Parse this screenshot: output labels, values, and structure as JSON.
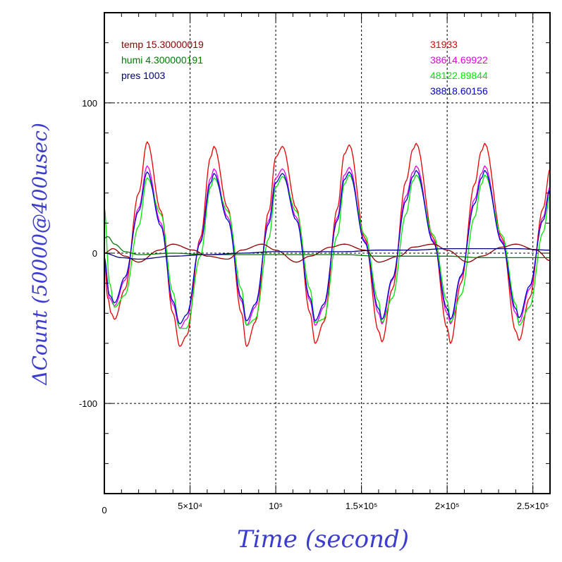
{
  "chart_data": {
    "type": "line",
    "title": "",
    "xlabel": "Time (second)",
    "ylabel": "ΔCount (50000@400usec)",
    "xlim": [
      0,
      260000
    ],
    "ylim": [
      -160,
      160
    ],
    "grid": true,
    "x_tick_labels": [
      {
        "value": 0,
        "label": "0"
      },
      {
        "value": 50000,
        "label": "5×10⁴"
      },
      {
        "value": 100000,
        "label": "10⁵"
      },
      {
        "value": 150000,
        "label": "1.5×10⁵"
      },
      {
        "value": 200000,
        "label": "2×10⁵"
      },
      {
        "value": 250000,
        "label": "2.5×10⁵"
      }
    ],
    "y_tick_labels": [
      {
        "value": 100,
        "label": "100"
      },
      {
        "value": 0,
        "label": "0"
      },
      {
        "value": -100,
        "label": "-100"
      }
    ],
    "legend_left": [
      {
        "text": "temp 15.30000019",
        "color": "#8b0000"
      },
      {
        "text": "humi 4.300000191",
        "color": "#007a00"
      },
      {
        "text": "pres 1003",
        "color": "#00007a"
      }
    ],
    "legend_right": [
      {
        "text": "31933",
        "color": "#e60000"
      },
      {
        "text": "38614.69922",
        "color": "#e600e6"
      },
      {
        "text": "48122.89844",
        "color": "#00e600"
      },
      {
        "text": "38818.60156",
        "color": "#0000d0"
      }
    ],
    "period": 39500,
    "series": [
      {
        "color": "#e60000",
        "amplitude": 67,
        "offset": 6,
        "phase": 0,
        "x": [
          0,
          2000,
          4000,
          6000,
          12000,
          20000,
          25000,
          33000,
          40000,
          44000,
          48000,
          56000,
          62000,
          64000,
          72000,
          80000,
          83000,
          88000,
          96000,
          100000,
          104000,
          112000,
          120000,
          123000,
          128000,
          136000,
          140000,
          143000,
          152000,
          160000,
          162000,
          168000,
          176000,
          180000,
          182000,
          192000,
          200000,
          202000,
          208000,
          216000,
          220000,
          222000,
          232000,
          240000,
          242000,
          248000,
          256000,
          260000
        ],
        "y": [
          -5,
          -30,
          -40,
          -44,
          -24,
          40,
          74,
          28,
          -40,
          -62,
          -55,
          10,
          64,
          71,
          30,
          -40,
          -62,
          -46,
          28,
          64,
          71,
          30,
          -40,
          -60,
          -46,
          30,
          66,
          72,
          10,
          -52,
          -59,
          -24,
          48,
          69,
          73,
          10,
          -50,
          -60,
          -20,
          46,
          68,
          73,
          10,
          -52,
          -58,
          -30,
          30,
          56
        ]
      },
      {
        "color": "#e600e6",
        "amplitude": 52,
        "offset": 5,
        "x": [
          0,
          3000,
          6000,
          12000,
          20000,
          25000,
          33000,
          40000,
          44000,
          48000,
          56000,
          62000,
          64000,
          72000,
          80000,
          83000,
          88000,
          96000,
          100000,
          104000,
          112000,
          120000,
          123000,
          128000,
          136000,
          140000,
          143000,
          152000,
          160000,
          162000,
          168000,
          176000,
          180000,
          182000,
          192000,
          200000,
          202000,
          208000,
          216000,
          220000,
          222000,
          232000,
          240000,
          242000,
          248000,
          256000,
          260000
        ],
        "y": [
          -5,
          -30,
          -35,
          -18,
          30,
          58,
          20,
          -34,
          -50,
          -44,
          8,
          50,
          56,
          24,
          -32,
          -48,
          -36,
          22,
          50,
          56,
          24,
          -32,
          -48,
          -36,
          24,
          52,
          57,
          8,
          -40,
          -47,
          -18,
          38,
          54,
          58,
          8,
          -40,
          -47,
          -16,
          36,
          53,
          58,
          8,
          -40,
          -46,
          -24,
          24,
          44
        ]
      },
      {
        "color": "#00e600",
        "amplitude": 50,
        "offset": 3,
        "x": [
          0,
          3000,
          6000,
          12000,
          20000,
          25000,
          33000,
          40000,
          44000,
          48000,
          56000,
          62000,
          64000,
          72000,
          80000,
          83000,
          88000,
          96000,
          100000,
          104000,
          112000,
          120000,
          123000,
          128000,
          136000,
          140000,
          143000,
          152000,
          160000,
          162000,
          168000,
          176000,
          180000,
          182000,
          192000,
          200000,
          202000,
          208000,
          216000,
          220000,
          222000,
          232000,
          240000,
          242000,
          248000,
          256000,
          260000
        ],
        "y": [
          30,
          -20,
          -36,
          -28,
          18,
          50,
          26,
          -26,
          -50,
          -50,
          -2,
          44,
          50,
          28,
          -24,
          -48,
          -44,
          10,
          44,
          51,
          28,
          -24,
          -46,
          -44,
          12,
          46,
          52,
          12,
          -32,
          -46,
          -30,
          26,
          48,
          52,
          12,
          -32,
          -46,
          -28,
          24,
          46,
          52,
          12,
          -34,
          -48,
          -36,
          14,
          38
        ]
      },
      {
        "color": "#0000d0",
        "amplitude": 48,
        "offset": 4,
        "x": [
          0,
          3000,
          6000,
          12000,
          20000,
          25000,
          33000,
          40000,
          44000,
          48000,
          56000,
          62000,
          64000,
          72000,
          80000,
          83000,
          88000,
          96000,
          100000,
          104000,
          112000,
          120000,
          123000,
          128000,
          136000,
          140000,
          143000,
          152000,
          160000,
          162000,
          168000,
          176000,
          180000,
          182000,
          192000,
          200000,
          202000,
          208000,
          216000,
          220000,
          222000,
          232000,
          240000,
          242000,
          248000,
          256000,
          260000
        ],
        "y": [
          -3,
          -28,
          -33,
          -16,
          28,
          54,
          18,
          -32,
          -47,
          -41,
          7,
          47,
          53,
          22,
          -30,
          -45,
          -34,
          20,
          47,
          53,
          22,
          -30,
          -45,
          -34,
          22,
          49,
          54,
          7,
          -37,
          -44,
          -17,
          35,
          51,
          55,
          7,
          -37,
          -44,
          -15,
          33,
          50,
          55,
          7,
          -37,
          -43,
          -22,
          22,
          42
        ]
      },
      {
        "color": "#8b0000",
        "x": [
          0,
          5000,
          12000,
          20000,
          32000,
          40000,
          52000,
          60000,
          72000,
          80000,
          92000,
          100000,
          112000,
          120000,
          132000,
          140000,
          152000,
          160000,
          172000,
          180000,
          192000,
          200000,
          212000,
          220000,
          232000,
          240000,
          252000,
          260000
        ],
        "y": [
          0,
          3,
          -2,
          -6,
          2,
          6,
          2,
          -2,
          -4,
          2,
          6,
          2,
          -6,
          -2,
          4,
          6,
          2,
          -6,
          -2,
          4,
          6,
          2,
          -6,
          -2,
          4,
          6,
          2,
          -5
        ]
      },
      {
        "color": "#007a00",
        "x": [
          0,
          2000,
          6000,
          12000,
          20000,
          40000,
          60000,
          80000,
          100000,
          120000,
          140000,
          160000,
          180000,
          200000,
          220000,
          240000,
          260000
        ],
        "y": [
          10,
          11,
          6,
          1,
          -1,
          0,
          -1,
          -1,
          -1,
          -1,
          -1,
          -2,
          -2,
          -2,
          -3,
          -3,
          -3
        ]
      },
      {
        "color": "#00007a",
        "x": [
          0,
          10000,
          20000,
          40000,
          60000,
          80000,
          100000,
          120000,
          140000,
          160000,
          180000,
          200000,
          220000,
          240000,
          260000
        ],
        "y": [
          0,
          -3,
          -4,
          -2,
          -1,
          0,
          1,
          1,
          1,
          2,
          2,
          3,
          3,
          3,
          2
        ]
      }
    ]
  }
}
